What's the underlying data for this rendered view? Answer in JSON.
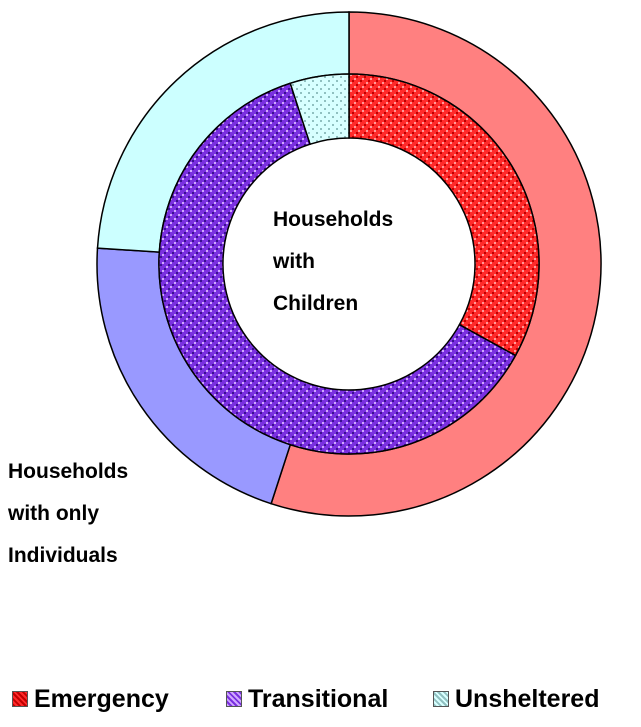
{
  "chart_data": {
    "type": "doughnut",
    "rings": [
      {
        "name": "Households with Children",
        "position": "inner",
        "slices": [
          {
            "category": "Emergency",
            "value": 33
          },
          {
            "category": "Transitional",
            "value": 62
          },
          {
            "category": "Unsheltered",
            "value": 5
          }
        ]
      },
      {
        "name": "Households with only Individuals",
        "position": "outer",
        "slices": [
          {
            "category": "Emergency",
            "value": 55
          },
          {
            "category": "Transitional",
            "value": 21
          },
          {
            "category": "Unsheltered",
            "value": 24
          }
        ]
      }
    ],
    "ring_labels": {
      "inner": [
        "Households",
        "with",
        "Children"
      ],
      "outer": [
        "Households",
        "with only",
        "Individuals"
      ]
    },
    "legend": {
      "placement": "bottom",
      "entries": [
        "Emergency",
        "Transitional",
        "Unsheltered"
      ]
    },
    "colors": {
      "Emergency": {
        "outer": "#ff8080",
        "inner": "#ff2020",
        "pattern": "#e00000"
      },
      "Transitional": {
        "outer": "#9999ff",
        "inner": "#7a39e0",
        "pattern": "#b070ff"
      },
      "Unsheltered": {
        "outer": "#ccffff",
        "inner": "#ccffff",
        "pattern": "#8ab8b8"
      }
    }
  }
}
